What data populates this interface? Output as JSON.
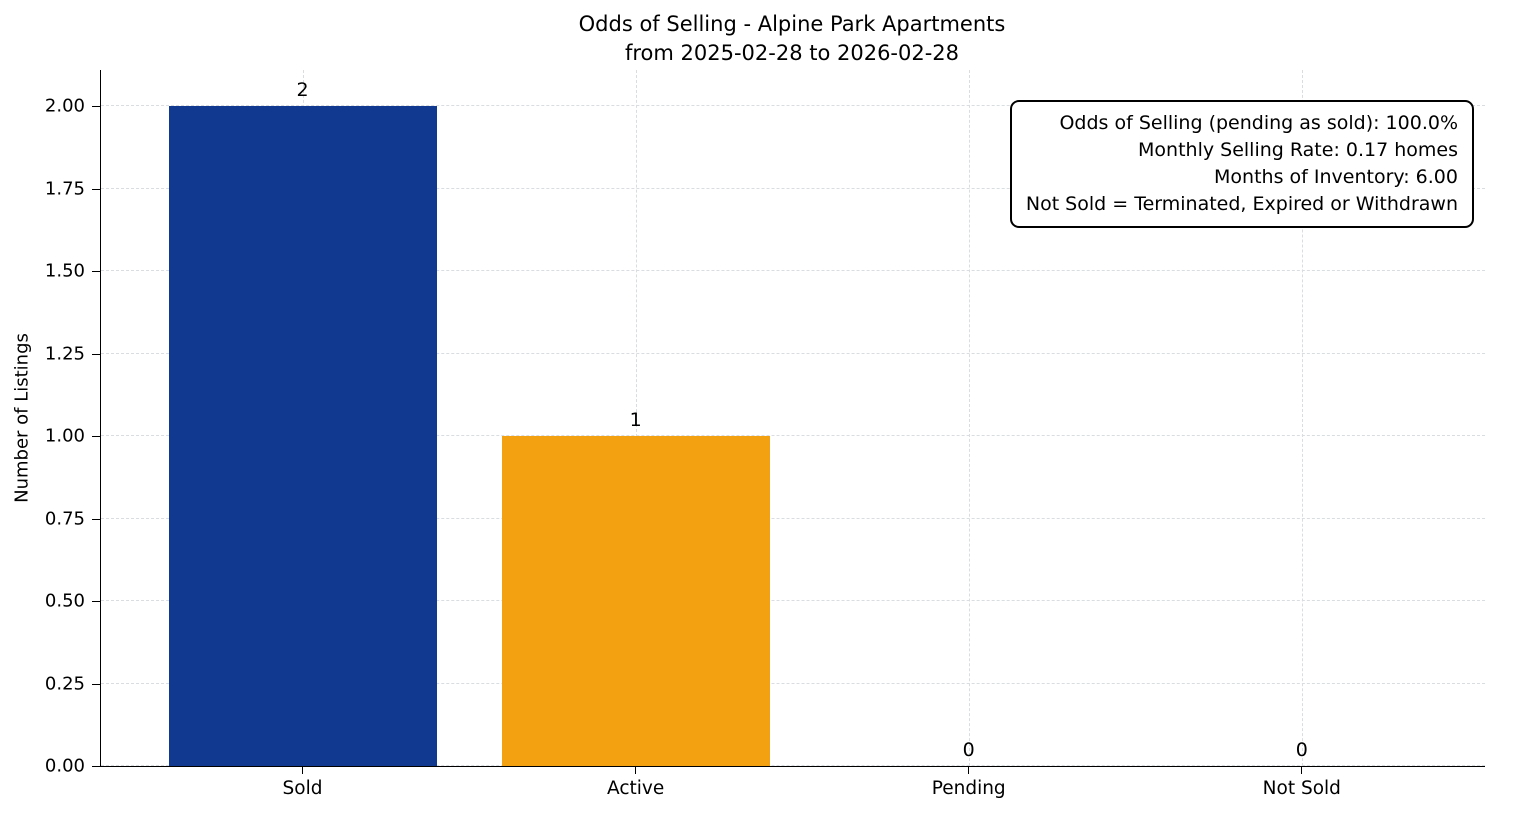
{
  "chart_data": {
    "type": "bar",
    "title": "Odds of Selling - Alpine Park Apartments",
    "subtitle": "from 2025-02-28 to 2026-02-28",
    "xlabel": "",
    "ylabel": "Number of Listings",
    "categories": [
      "Sold",
      "Active",
      "Pending",
      "Not Sold"
    ],
    "values": [
      2,
      1,
      0,
      0
    ],
    "value_labels": [
      "2",
      "1",
      "0",
      "0"
    ],
    "bar_colors": [
      "#11398f",
      "#f3a011",
      "#11398f",
      "#11398f"
    ],
    "ylim": [
      0,
      2.11
    ],
    "yticks": [
      {
        "value": 0.0,
        "label": "0.00"
      },
      {
        "value": 0.25,
        "label": "0.25"
      },
      {
        "value": 0.5,
        "label": "0.50"
      },
      {
        "value": 0.75,
        "label": "0.75"
      },
      {
        "value": 1.0,
        "label": "1.00"
      },
      {
        "value": 1.25,
        "label": "1.25"
      },
      {
        "value": 1.5,
        "label": "1.50"
      },
      {
        "value": 1.75,
        "label": "1.75"
      },
      {
        "value": 2.0,
        "label": "2.00"
      }
    ],
    "grid": "dashed, both axes",
    "legend": "none",
    "colors": {
      "sold_bar": "#11398f",
      "active_bar": "#f3a011",
      "grid": "#d9dde0",
      "axis": "#000000"
    },
    "annotation": {
      "lines": [
        "Odds of Selling (pending as sold): 100.0%",
        "Monthly Selling Rate: 0.17 homes",
        "Months of Inventory: 6.00",
        "Not Sold = Terminated, Expired or Withdrawn"
      ]
    }
  }
}
